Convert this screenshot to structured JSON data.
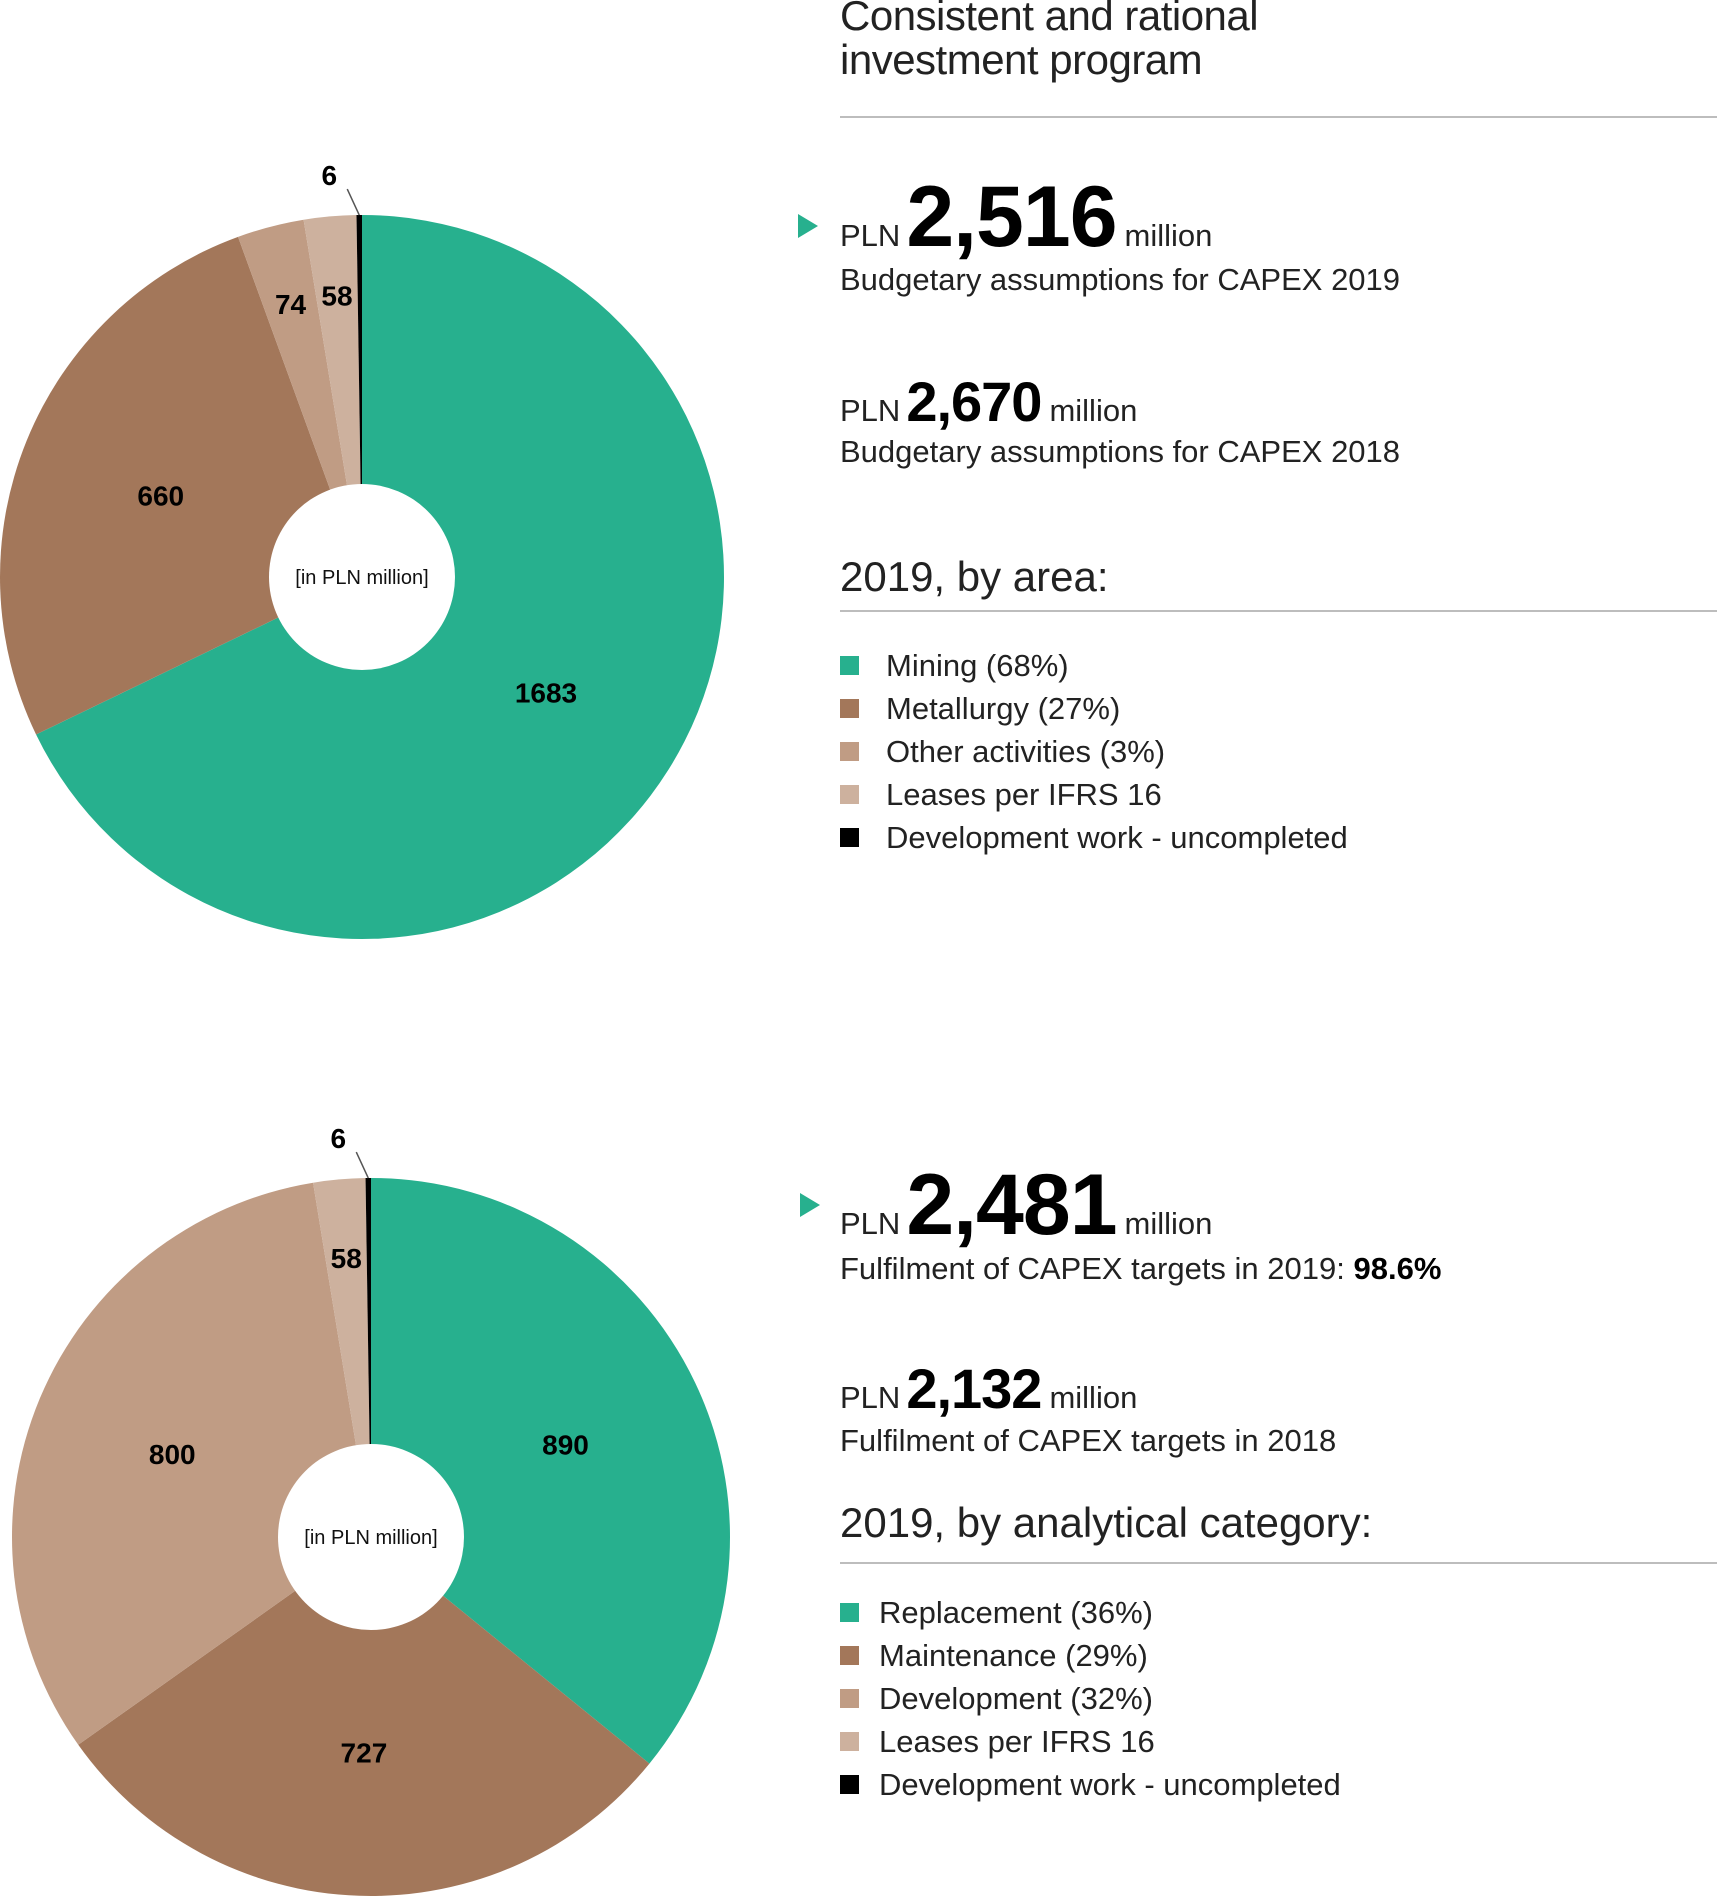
{
  "header": {
    "title_line1": "Consistent and rational",
    "title_line2": "investment program"
  },
  "colors": {
    "accent": "#27b08e",
    "green": "#27b08e",
    "brown": "#a3775a",
    "tan": "#c09c84",
    "light_tan": "#cdb19e",
    "black": "#000000"
  },
  "top": {
    "stat1": {
      "prefix": "PLN",
      "value": "2,516",
      "suffix": "million",
      "caption": "Budgetary assumptions for CAPEX 2019"
    },
    "stat2": {
      "prefix": "PLN",
      "value": "2,670",
      "suffix": "million",
      "caption": "Budgetary assumptions for CAPEX 2018"
    },
    "heading": "2019, by area:",
    "legend": [
      "Mining (68%)",
      "Metallurgy (27%)",
      "Other activities (3%)",
      "Leases per IFRS 16",
      "Development work - uncompleted"
    ]
  },
  "bottom": {
    "stat1": {
      "prefix": "PLN",
      "value": "2,481",
      "suffix": "million",
      "caption": "Fulfilment of CAPEX targets in 2019:",
      "caption_bold": "98.6%"
    },
    "stat2": {
      "prefix": "PLN",
      "value": "2,132",
      "suffix": "million",
      "caption": "Fulfilment of CAPEX targets in 2018"
    },
    "heading": "2019, by analytical category:",
    "legend": [
      "Replacement (36%)",
      "Maintenance (29%)",
      "Development (32%)",
      "Leases per IFRS 16",
      "Development work - uncompleted"
    ]
  },
  "chart_data": [
    {
      "type": "pie",
      "title": "2019, by area",
      "center_label": "[in PLN million]",
      "categories": [
        "Mining",
        "Metallurgy",
        "Other activities",
        "Leases per IFRS 16",
        "Development work - uncompleted"
      ],
      "values": [
        1683,
        660,
        74,
        58,
        6
      ],
      "labels": [
        "1683",
        "660",
        "74",
        "58",
        "6"
      ],
      "colors": [
        "#27b08e",
        "#a3775a",
        "#c09c84",
        "#cdb19e",
        "#000000"
      ]
    },
    {
      "type": "pie",
      "title": "2019, by analytical category",
      "center_label": "[in PLN million]",
      "categories": [
        "Replacement",
        "Maintenance",
        "Development",
        "Leases per IFRS 16",
        "Development work - uncompleted"
      ],
      "values": [
        890,
        727,
        800,
        58,
        6
      ],
      "labels": [
        "890",
        "727",
        "800",
        "58",
        "6"
      ],
      "colors": [
        "#27b08e",
        "#a3775a",
        "#c09c84",
        "#cdb19e",
        "#000000"
      ]
    }
  ]
}
